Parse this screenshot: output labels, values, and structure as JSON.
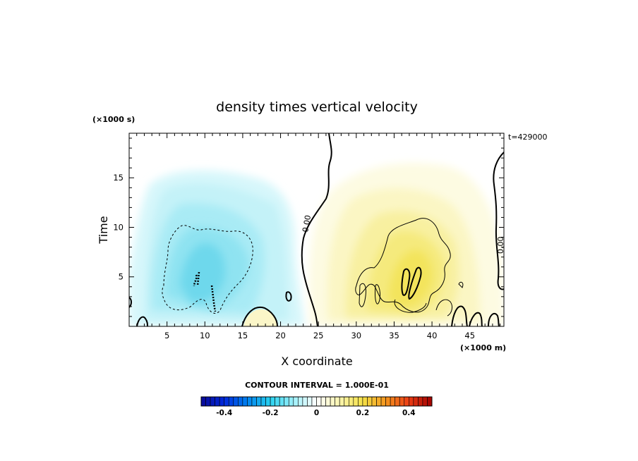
{
  "chart_data": {
    "type": "heatmap",
    "title": "density times vertical velocity",
    "xlabel": "X coordinate",
    "ylabel": "Time",
    "x_unit": "(×1000 m)",
    "y_unit": "(×1000 s)",
    "x_range": [
      0,
      49.5
    ],
    "y_range": [
      0,
      19.5
    ],
    "x_ticks": [
      5,
      10,
      15,
      20,
      25,
      30,
      35,
      40,
      45
    ],
    "y_ticks": [
      5,
      10,
      15
    ],
    "time_stamp": "t=429000",
    "contour_interval_text": "CONTOUR INTERVAL = 1.000E-01",
    "contour_interval": 0.1,
    "zero_contour_labels": [
      "0.00",
      "0.00"
    ],
    "colorbar": {
      "min": -0.5,
      "max": 0.5,
      "ticks": [
        -0.4,
        -0.2,
        0,
        0.2,
        0.4
      ],
      "tick_labels": [
        "-0.4",
        "-0.2",
        "0",
        "0.2",
        "0.4"
      ]
    },
    "features": [
      {
        "sign": "negative",
        "x_center": 10,
        "t_center": 7,
        "peak": -0.25
      },
      {
        "sign": "positive",
        "x_center": 37.5,
        "t_center": 6,
        "peak": 0.25
      }
    ],
    "grid": false
  }
}
